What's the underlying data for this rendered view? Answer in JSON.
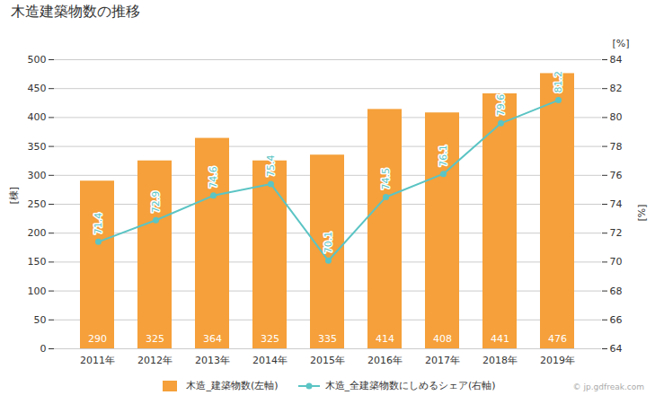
{
  "chart_data": {
    "type": "bar",
    "title": "木造建築物数の推移",
    "categories": [
      "2011年",
      "2012年",
      "2013年",
      "2014年",
      "2015年",
      "2016年",
      "2017年",
      "2018年",
      "2019年"
    ],
    "series": [
      {
        "name": "木造_建築物数(左軸)",
        "type": "bar",
        "color": "#F5A03A",
        "values": [
          290,
          325,
          364,
          325,
          335,
          414,
          408,
          441,
          476
        ]
      },
      {
        "name": "木造_全建築物数にしめるシェア(右軸)",
        "type": "line",
        "color": "#5BC4C4",
        "marker": "circle",
        "axis": "y2",
        "values": [
          71.4,
          72.9,
          74.6,
          75.4,
          70.1,
          74.5,
          76.1,
          79.6,
          81.2
        ]
      }
    ],
    "ylabel": "[棟]",
    "y2label": "[%]",
    "ylim": [
      0,
      500
    ],
    "yticks": [
      0,
      50,
      100,
      150,
      200,
      250,
      300,
      350,
      400,
      450,
      500
    ],
    "y2lim": [
      64.0,
      84.0
    ],
    "y2ticks": [
      64,
      66,
      68,
      70,
      72,
      74,
      76,
      78,
      80,
      82,
      84
    ],
    "grid": true,
    "legend": "bottom",
    "data_labels": true,
    "annotations": [
      "[%]",
      "© jp.gdfreak.com"
    ]
  }
}
